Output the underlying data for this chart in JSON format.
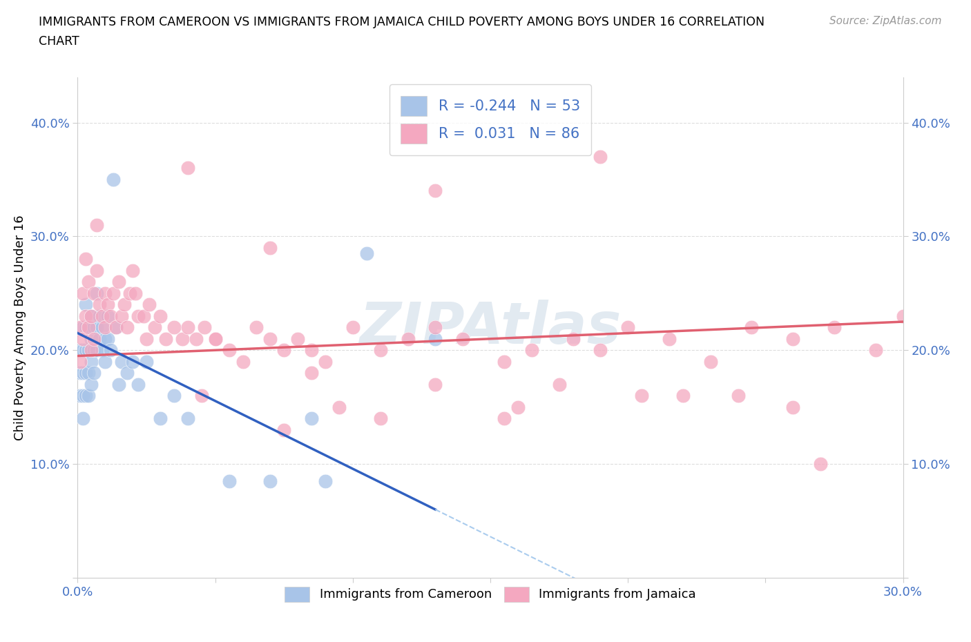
{
  "title_line1": "IMMIGRANTS FROM CAMEROON VS IMMIGRANTS FROM JAMAICA CHILD POVERTY AMONG BOYS UNDER 16 CORRELATION",
  "title_line2": "CHART",
  "source": "Source: ZipAtlas.com",
  "ylabel": "Child Poverty Among Boys Under 16",
  "xlim": [
    0.0,
    0.3
  ],
  "ylim": [
    0.0,
    0.44
  ],
  "R_cameroon": -0.244,
  "N_cameroon": 53,
  "R_jamaica": 0.031,
  "N_jamaica": 86,
  "cameroon_color": "#a8c4e8",
  "jamaica_color": "#f4a8c0",
  "cameroon_line_color": "#3060c0",
  "jamaica_line_color": "#e06070",
  "trend_line_dash_color": "#aaccee",
  "watermark_color": "#d0dce8",
  "cam_trend_x0": 0.0,
  "cam_trend_y0": 0.215,
  "cam_trend_x1": 0.13,
  "cam_trend_y1": 0.06,
  "jam_trend_x0": 0.0,
  "jam_trend_y0": 0.195,
  "jam_trend_x1": 0.3,
  "jam_trend_y1": 0.225,
  "cameroon_x": [
    0.001,
    0.001,
    0.001,
    0.002,
    0.002,
    0.002,
    0.002,
    0.002,
    0.003,
    0.003,
    0.003,
    0.003,
    0.003,
    0.004,
    0.004,
    0.004,
    0.004,
    0.005,
    0.005,
    0.005,
    0.005,
    0.006,
    0.006,
    0.006,
    0.007,
    0.007,
    0.007,
    0.008,
    0.008,
    0.009,
    0.009,
    0.01,
    0.01,
    0.011,
    0.011,
    0.012,
    0.013,
    0.014,
    0.015,
    0.016,
    0.018,
    0.02,
    0.022,
    0.025,
    0.03,
    0.035,
    0.04,
    0.055,
    0.07,
    0.085,
    0.09,
    0.105,
    0.13
  ],
  "cameroon_y": [
    0.2,
    0.18,
    0.16,
    0.22,
    0.2,
    0.18,
    0.16,
    0.14,
    0.24,
    0.22,
    0.2,
    0.18,
    0.16,
    0.22,
    0.2,
    0.18,
    0.16,
    0.23,
    0.21,
    0.19,
    0.17,
    0.22,
    0.2,
    0.18,
    0.25,
    0.22,
    0.2,
    0.23,
    0.21,
    0.22,
    0.2,
    0.21,
    0.19,
    0.23,
    0.21,
    0.2,
    0.35,
    0.22,
    0.17,
    0.19,
    0.18,
    0.19,
    0.17,
    0.19,
    0.14,
    0.16,
    0.14,
    0.085,
    0.085,
    0.14,
    0.085,
    0.285,
    0.21
  ],
  "jamaica_x": [
    0.001,
    0.001,
    0.002,
    0.002,
    0.003,
    0.003,
    0.004,
    0.004,
    0.005,
    0.005,
    0.006,
    0.006,
    0.007,
    0.007,
    0.008,
    0.009,
    0.01,
    0.01,
    0.011,
    0.012,
    0.013,
    0.014,
    0.015,
    0.016,
    0.017,
    0.018,
    0.019,
    0.02,
    0.021,
    0.022,
    0.024,
    0.025,
    0.026,
    0.028,
    0.03,
    0.032,
    0.035,
    0.038,
    0.04,
    0.043,
    0.046,
    0.05,
    0.055,
    0.06,
    0.065,
    0.07,
    0.075,
    0.08,
    0.085,
    0.09,
    0.1,
    0.11,
    0.12,
    0.13,
    0.14,
    0.155,
    0.165,
    0.18,
    0.19,
    0.2,
    0.215,
    0.23,
    0.245,
    0.26,
    0.275,
    0.29,
    0.04,
    0.07,
    0.13,
    0.19,
    0.05,
    0.085,
    0.16,
    0.22,
    0.27,
    0.045,
    0.11,
    0.175,
    0.24,
    0.095,
    0.155,
    0.205,
    0.26,
    0.075,
    0.13,
    0.3
  ],
  "jamaica_y": [
    0.22,
    0.19,
    0.25,
    0.21,
    0.28,
    0.23,
    0.26,
    0.22,
    0.23,
    0.2,
    0.25,
    0.21,
    0.31,
    0.27,
    0.24,
    0.23,
    0.25,
    0.22,
    0.24,
    0.23,
    0.25,
    0.22,
    0.26,
    0.23,
    0.24,
    0.22,
    0.25,
    0.27,
    0.25,
    0.23,
    0.23,
    0.21,
    0.24,
    0.22,
    0.23,
    0.21,
    0.22,
    0.21,
    0.22,
    0.21,
    0.22,
    0.21,
    0.2,
    0.19,
    0.22,
    0.21,
    0.2,
    0.21,
    0.2,
    0.19,
    0.22,
    0.2,
    0.21,
    0.22,
    0.21,
    0.19,
    0.2,
    0.21,
    0.2,
    0.22,
    0.21,
    0.19,
    0.22,
    0.21,
    0.22,
    0.2,
    0.36,
    0.29,
    0.34,
    0.37,
    0.21,
    0.18,
    0.15,
    0.16,
    0.1,
    0.16,
    0.14,
    0.17,
    0.16,
    0.15,
    0.14,
    0.16,
    0.15,
    0.13,
    0.17,
    0.23
  ]
}
